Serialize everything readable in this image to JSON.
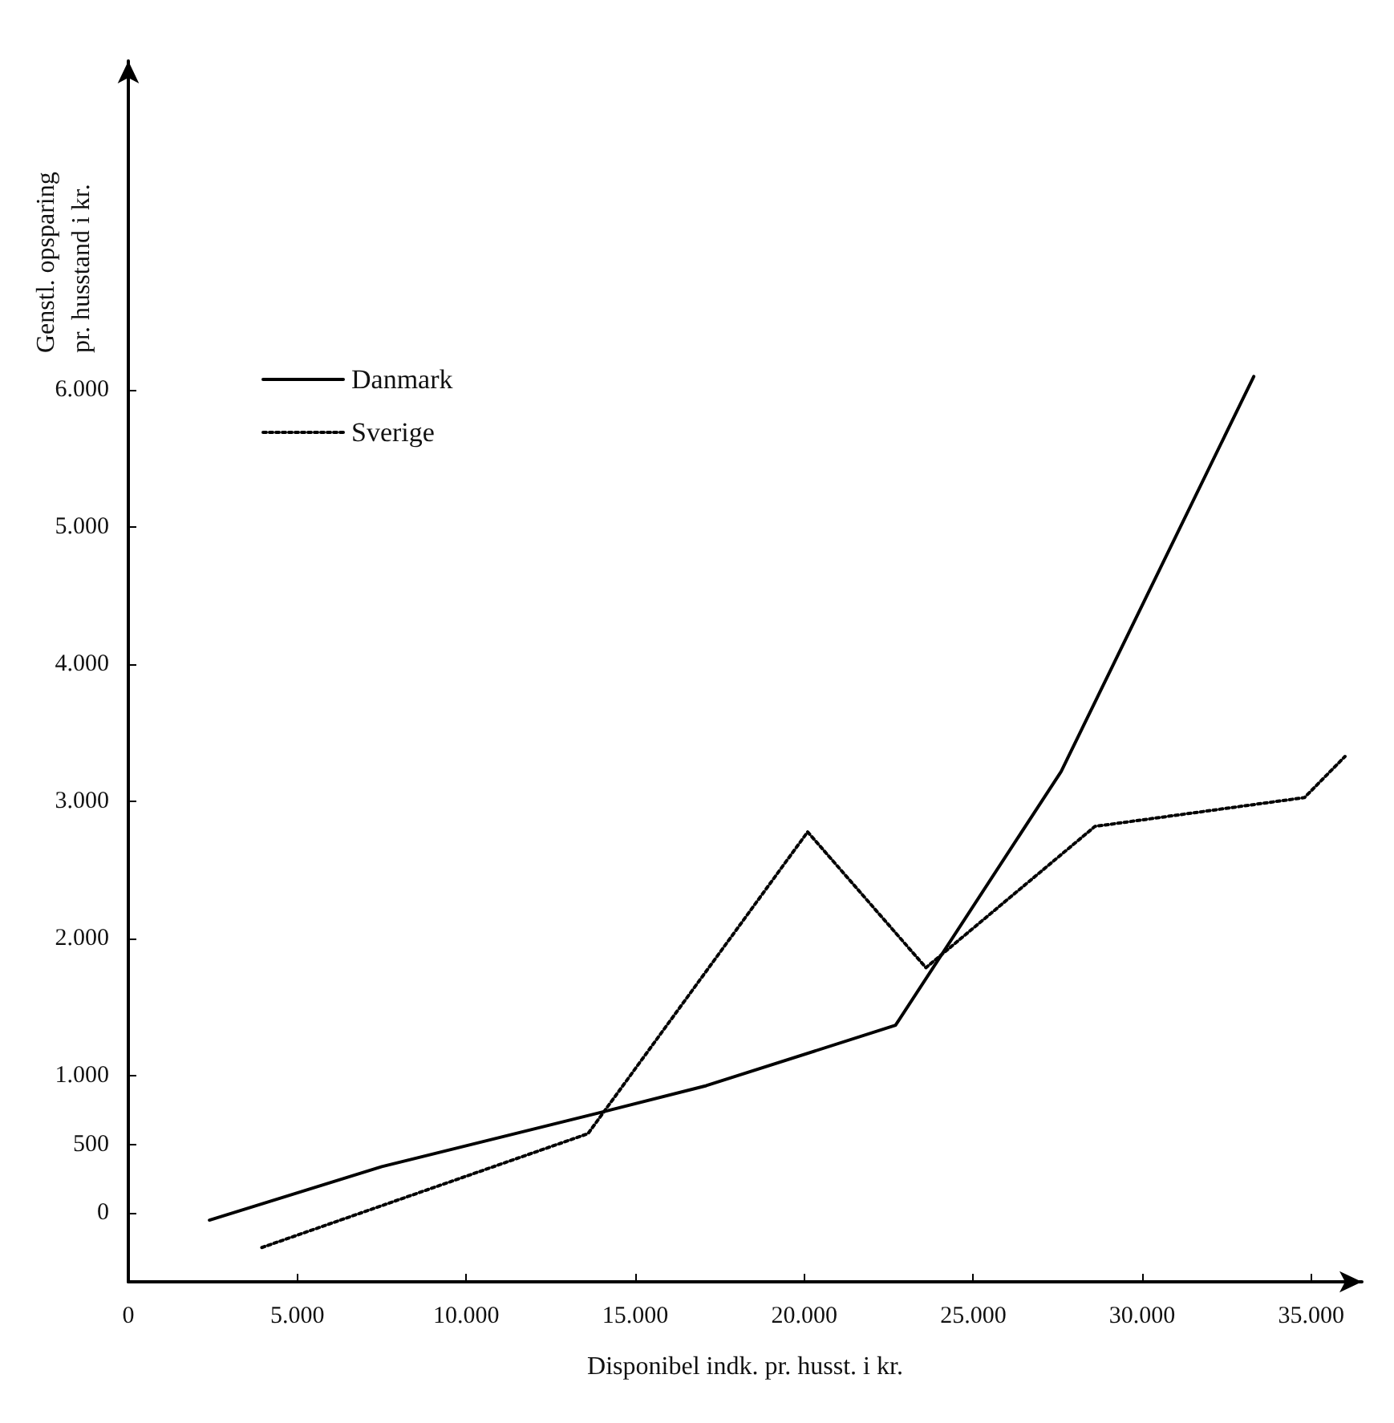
{
  "chart_data": {
    "type": "line",
    "xlabel": "Disponibel indk. pr. husst. i kr.",
    "ylabel": "Genstl. opsparing\npr. husstand i kr.",
    "series": [
      {
        "name": "Danmark",
        "color": "#000000",
        "line_style": "solid",
        "x": [
          2400,
          7500,
          13900,
          17100,
          22700,
          27600,
          33300
        ],
        "values": [
          -50,
          340,
          730,
          930,
          1370,
          3220,
          6100
        ]
      },
      {
        "name": "Sverige",
        "color": "#000000",
        "line_style": "dotted",
        "x": [
          3950,
          13600,
          20100,
          23600,
          28600,
          34800,
          36000
        ],
        "values": [
          -250,
          580,
          2780,
          1790,
          2820,
          3030,
          3330
        ]
      }
    ],
    "xlim": [
      0,
      36500
    ],
    "xticks": [
      0,
      {
        "value": 5000,
        "label": "5.000"
      },
      {
        "value": 10000,
        "label": "10.000"
      },
      {
        "value": 15000,
        "label": "15.000"
      },
      {
        "value": 20000,
        "label": "20.000"
      },
      {
        "value": 25000,
        "label": "25.000"
      },
      {
        "value": 30000,
        "label": "30.000"
      },
      {
        "value": 35000,
        "label": "35.000"
      }
    ],
    "ylim": [
      -500,
      8400
    ],
    "yticks": [
      0,
      500,
      {
        "value": 1000,
        "label": "1.000"
      },
      {
        "value": 2000,
        "label": "2.000"
      },
      {
        "value": 3000,
        "label": "3.000"
      },
      {
        "value": 4000,
        "label": "4.000"
      },
      {
        "value": 5000,
        "label": "5.000"
      },
      {
        "value": 6000,
        "label": "6.000"
      }
    ],
    "grid": false,
    "legend": "top left",
    "marker": "none"
  }
}
